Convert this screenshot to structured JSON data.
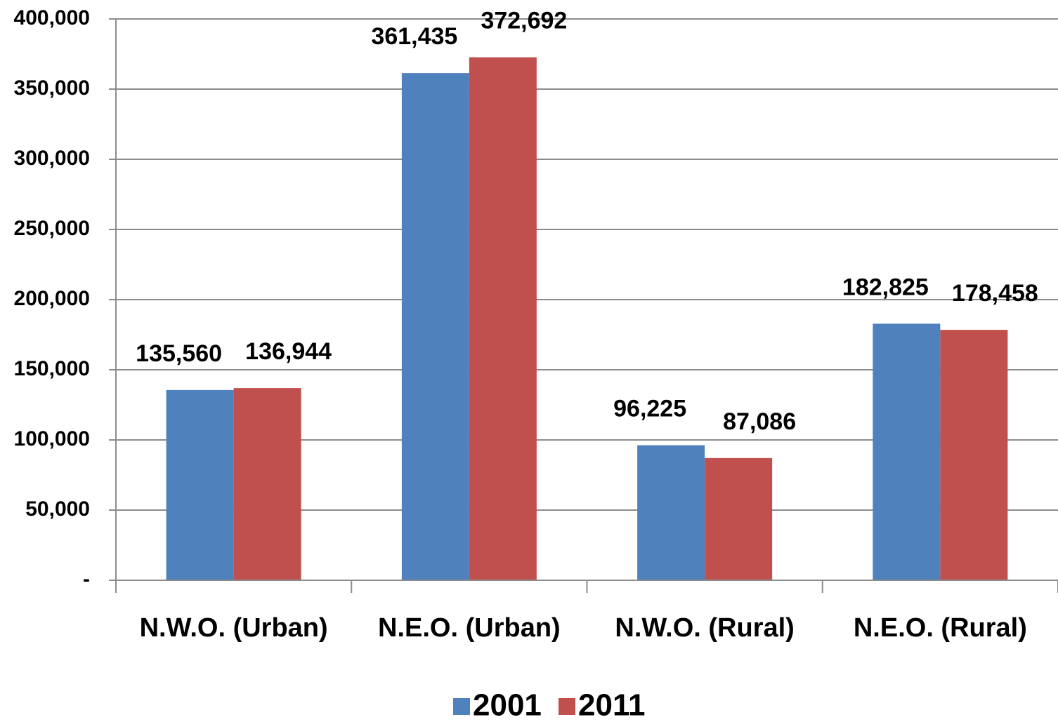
{
  "chart_data": {
    "type": "bar",
    "categories": [
      "N.W.O. (Urban)",
      "N.E.O. (Urban)",
      "N.W.O. (Rural)",
      "N.E.O. (Rural)"
    ],
    "series": [
      {
        "name": "2001",
        "color": "#4f81bd",
        "values": [
          135560,
          361435,
          96225,
          182825
        ],
        "value_labels": [
          "135,560",
          "361,435",
          "96,225",
          "182,825"
        ]
      },
      {
        "name": "2011",
        "color": "#c0504d",
        "values": [
          136944,
          372692,
          87086,
          178458
        ],
        "value_labels": [
          "136,944",
          "372,692",
          "87,086",
          "178,458"
        ]
      }
    ],
    "ylim": [
      0,
      400000
    ],
    "yticks": [
      {
        "value": 0,
        "label": "-"
      },
      {
        "value": 50000,
        "label": "50,000"
      },
      {
        "value": 100000,
        "label": "100,000"
      },
      {
        "value": 150000,
        "label": "150,000"
      },
      {
        "value": 200000,
        "label": "200,000"
      },
      {
        "value": 250000,
        "label": "250,000"
      },
      {
        "value": 300000,
        "label": "300,000"
      },
      {
        "value": 350000,
        "label": "350,000"
      },
      {
        "value": 400000,
        "label": "400,000"
      }
    ],
    "grid": true,
    "legend": "bottom"
  }
}
